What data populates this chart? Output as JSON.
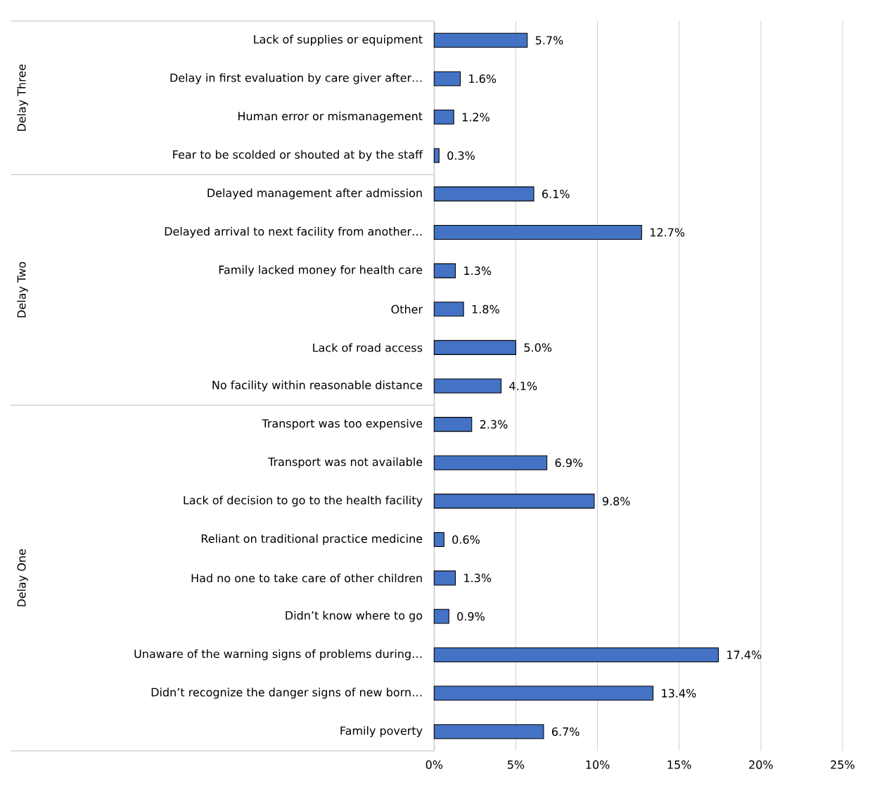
{
  "chart_data": {
    "type": "bar",
    "orientation": "horizontal",
    "categories": [
      "Lack of supplies or equipment",
      "Delay in first evaluation by care giver after…",
      "Human error or mismanagement",
      "Fear to be scolded or shouted at by the staff",
      "Delayed management after admission",
      "Delayed arrival to next facility from another…",
      "Family lacked money for health care",
      "Other",
      "Lack of road access",
      "No facility within reasonable distance",
      "Transport was too expensive",
      "Transport was not available",
      "Lack of decision to go to the health facility",
      "Reliant on traditional practice medicine",
      "Had no one to take care of other children",
      "Didn’t know where to go",
      "Unaware of the warning signs of problems during…",
      "Didn’t recognize the danger signs of new born…",
      "Family poverty"
    ],
    "values": [
      5.7,
      1.6,
      1.2,
      0.3,
      6.1,
      12.7,
      1.3,
      1.8,
      5.0,
      4.1,
      2.3,
      6.9,
      9.8,
      0.6,
      1.3,
      0.9,
      17.4,
      13.4,
      6.7
    ],
    "value_labels": [
      "5.7%",
      "1.6%",
      "1.2%",
      "0.3%",
      "6.1%",
      "12.7%",
      "1.3%",
      "1.8%",
      "5.0%",
      "4.1%",
      "2.3%",
      "6.9%",
      "9.8%",
      "0.6%",
      "1.3%",
      "0.9%",
      "17.4%",
      "13.4%",
      "6.7%"
    ],
    "color": "#4472c4",
    "xlim": [
      0,
      25
    ],
    "xticks": [
      {
        "value": 0,
        "label": "0%"
      },
      {
        "value": 5,
        "label": "5%"
      },
      {
        "value": 10,
        "label": "10%"
      },
      {
        "value": 15,
        "label": "15%"
      },
      {
        "value": 20,
        "label": "20%"
      },
      {
        "value": 25,
        "label": "25%"
      }
    ],
    "grid": "x",
    "annotations": [
      "Delay Three",
      "Delay Two",
      "Delay One"
    ]
  }
}
